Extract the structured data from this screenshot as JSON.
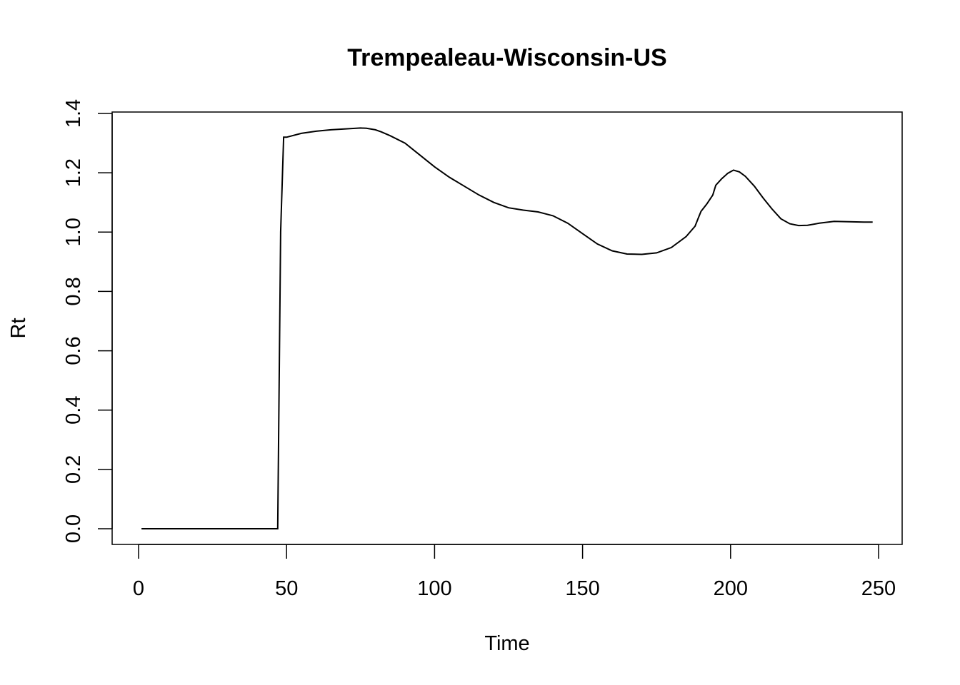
{
  "chart_data": {
    "type": "line",
    "title": "Trempealeau-Wisconsin-US",
    "xlabel": "Time",
    "ylabel": "Rt",
    "xlim": [
      0,
      250
    ],
    "ylim": [
      0,
      1.4
    ],
    "xticks": [
      "0",
      "50",
      "100",
      "150",
      "200",
      "250"
    ],
    "yticks": [
      "0.0",
      "0.2",
      "0.4",
      "0.6",
      "0.8",
      "1.0",
      "1.2",
      "1.4"
    ],
    "grid": false,
    "line_color": "#000000",
    "series": [
      {
        "x": [
          1,
          47,
          48,
          49,
          50,
          55,
          60,
          65,
          70,
          75,
          77,
          80,
          82,
          85,
          90,
          95,
          100,
          105,
          110,
          115,
          120,
          125,
          130,
          135,
          140,
          145,
          150,
          155,
          160,
          165,
          170,
          175,
          180,
          185,
          188,
          189,
          190,
          192,
          194,
          195,
          197,
          199,
          201,
          203,
          205,
          208,
          211,
          214,
          217,
          220,
          223,
          226,
          230,
          235,
          240,
          245,
          248
        ],
        "y": [
          0,
          0,
          1.0,
          1.32,
          1.32,
          1.333,
          1.34,
          1.345,
          1.348,
          1.351,
          1.35,
          1.345,
          1.338,
          1.325,
          1.3,
          1.26,
          1.22,
          1.185,
          1.155,
          1.125,
          1.1,
          1.082,
          1.074,
          1.068,
          1.055,
          1.03,
          0.995,
          0.96,
          0.937,
          0.926,
          0.925,
          0.93,
          0.948,
          0.985,
          1.02,
          1.045,
          1.07,
          1.095,
          1.125,
          1.158,
          1.18,
          1.198,
          1.209,
          1.203,
          1.188,
          1.155,
          1.115,
          1.078,
          1.045,
          1.028,
          1.022,
          1.023,
          1.03,
          1.036,
          1.035,
          1.034,
          1.034
        ]
      }
    ]
  }
}
